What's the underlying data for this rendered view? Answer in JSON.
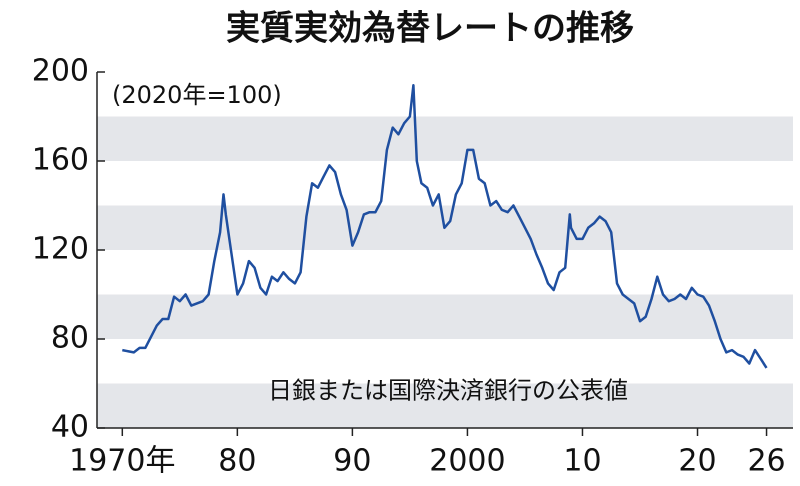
{
  "chart_data": {
    "type": "line",
    "title": "実質実効為替レートの推移",
    "subtitle": "(2020年=100)",
    "annotation": "日銀または国際決済銀行の公表値",
    "x": [
      1970,
      1971,
      1971.5,
      1972,
      1973,
      1973.5,
      1974,
      1974.5,
      1975,
      1975.5,
      1976,
      1977,
      1977.5,
      1978,
      1978.5,
      1978.8,
      1979,
      1979.5,
      1980,
      1980.5,
      1981,
      1981.5,
      1982,
      1982.5,
      1983,
      1983.5,
      1984,
      1984.5,
      1985,
      1985.5,
      1986,
      1986.5,
      1987,
      1987.5,
      1988,
      1988.5,
      1989,
      1989.5,
      1990,
      1990.5,
      1991,
      1991.5,
      1992,
      1992.5,
      1993,
      1993.5,
      1994,
      1994.5,
      1995,
      1995.3,
      1995.6,
      1996,
      1996.5,
      1997,
      1997.5,
      1998,
      1998.5,
      1999,
      1999.5,
      2000,
      2000.5,
      2001,
      2001.5,
      2002,
      2002.5,
      2003,
      2003.5,
      2004,
      2004.5,
      2005,
      2005.5,
      2006,
      2006.5,
      2007,
      2007.5,
      2008,
      2008.5,
      2008.9,
      2009,
      2009.5,
      2010,
      2010.5,
      2011,
      2011.5,
      2012,
      2012.5,
      2013,
      2013.5,
      2014,
      2014.5,
      2015,
      2015.5,
      2016,
      2016.5,
      2017,
      2017.5,
      2018,
      2018.5,
      2019,
      2019.5,
      2020,
      2020.5,
      2021,
      2021.5,
      2022,
      2022.5,
      2023,
      2023.5,
      2024,
      2024.5,
      2025,
      2025.5,
      2026
    ],
    "series": [
      {
        "name": "実質実効為替レート",
        "color": "#1f4fa0",
        "values": [
          75,
          74,
          76,
          76,
          86,
          89,
          89,
          99,
          97,
          100,
          95,
          97,
          100,
          115,
          128,
          145,
          136,
          118,
          100,
          105,
          115,
          112,
          103,
          100,
          108,
          106,
          110,
          107,
          105,
          110,
          135,
          150,
          148,
          153,
          158,
          155,
          145,
          138,
          122,
          128,
          136,
          137,
          137,
          142,
          165,
          175,
          172,
          177,
          180,
          194,
          160,
          150,
          148,
          140,
          145,
          130,
          133,
          145,
          150,
          165,
          165,
          152,
          150,
          140,
          142,
          138,
          137,
          140,
          135,
          130,
          125,
          118,
          112,
          105,
          102,
          110,
          112,
          136,
          130,
          125,
          125,
          130,
          132,
          135,
          133,
          128,
          105,
          100,
          98,
          96,
          88,
          90,
          98,
          108,
          100,
          97,
          98,
          100,
          98,
          103,
          100,
          99,
          95,
          88,
          80,
          74,
          75,
          73,
          72,
          69,
          75,
          71,
          67
        ]
      }
    ],
    "xlim": [
      1967.8,
      2028.3
    ],
    "xticks": [
      {
        "value": 1970,
        "label": "1970年"
      },
      {
        "value": 1980,
        "label": "80"
      },
      {
        "value": 1990,
        "label": "90"
      },
      2000,
      {
        "value": 2010,
        "label": "10"
      },
      {
        "value": 2020,
        "label": "20"
      },
      {
        "value": 2026,
        "label": "26"
      }
    ],
    "ylim": [
      40,
      200
    ],
    "yticks": [
      40,
      80,
      120,
      160,
      200
    ],
    "grid": true
  }
}
